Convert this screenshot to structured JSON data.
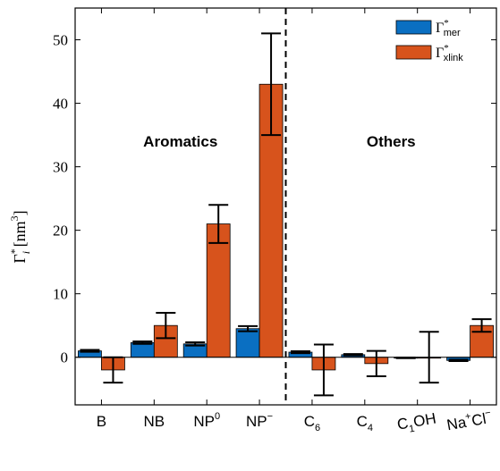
{
  "chart_data": {
    "type": "bar",
    "categories": [
      {
        "base": "B",
        "sup": "",
        "sub": ""
      },
      {
        "base": "NB",
        "sup": "",
        "sub": ""
      },
      {
        "base": "NP",
        "sup": "0",
        "sub": ""
      },
      {
        "base": "NP",
        "sup": "−",
        "sub": ""
      },
      {
        "base": "C",
        "sup": "",
        "sub": "6"
      },
      {
        "base": "C",
        "sup": "",
        "sub": "4"
      },
      {
        "base": "C",
        "sup": "",
        "sub": "1",
        "suffix": "OH"
      },
      {
        "base": "Na",
        "sup": "+",
        "sub": "",
        "suffix": "Cl",
        "suffix_sup": "−"
      }
    ],
    "series": [
      {
        "legend": {
          "sym": "Γ",
          "sup": "*",
          "sub": "mer"
        },
        "color": "#0a6fc2",
        "values": [
          1.0,
          2.3,
          2.1,
          4.5,
          0.8,
          0.4,
          -0.1,
          -0.5
        ],
        "errors": [
          0.15,
          0.2,
          0.25,
          0.4,
          0.15,
          0.1,
          0.05,
          0.1
        ]
      },
      {
        "legend": {
          "sym": "Γ",
          "sup": "*",
          "sub": "xlink"
        },
        "color": "#d7531c",
        "values": [
          -2.0,
          5.0,
          21.0,
          43.0,
          -2.0,
          -1.0,
          0.0,
          5.0
        ],
        "errors": [
          2.0,
          2.0,
          3.0,
          8.0,
          4.0,
          2.0,
          4.0,
          1.0
        ]
      }
    ],
    "groups": [
      "Aromatics",
      "Others"
    ],
    "ylabel": {
      "sym": "Γ",
      "sup": "*",
      "sub": "i",
      "unit_open": "[nm",
      "unit_sup": "3",
      "unit_close": "]"
    },
    "ylim": [
      -7.5,
      55
    ],
    "yticks": [
      "0",
      "10",
      "20",
      "30",
      "40",
      "50"
    ],
    "divider_between": [
      3,
      4
    ],
    "legend_position": "top-right",
    "grid": false
  }
}
